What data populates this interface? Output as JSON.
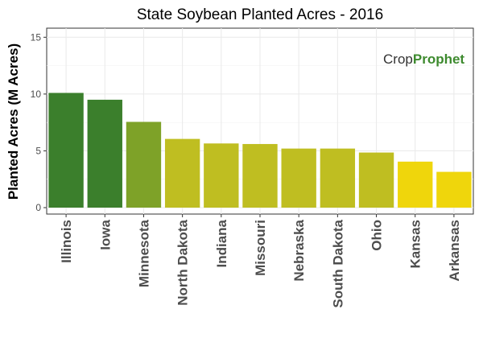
{
  "chart_data": {
    "type": "bar",
    "title": "State Soybean Planted Acres - 2016",
    "xlabel": "",
    "ylabel": "Planted Acres (M Acres)",
    "ylim": [
      0,
      15.8
    ],
    "yticks": [
      0,
      5,
      10,
      15
    ],
    "grid": true,
    "categories": [
      "Illinois",
      "Iowa",
      "Minnesota",
      "North Dakota",
      "Indiana",
      "Missouri",
      "Nebraska",
      "South Dakota",
      "Ohio",
      "Kansas",
      "Arkansas"
    ],
    "values": [
      10.1,
      9.5,
      7.55,
      6.05,
      5.65,
      5.6,
      5.2,
      5.2,
      4.85,
      4.05,
      3.15
    ],
    "colors": [
      "#3b7f2c",
      "#3b7f2c",
      "#7ea228",
      "#bfbe21",
      "#bfbe21",
      "#bfbe21",
      "#bfbe21",
      "#bfbe21",
      "#bfbe21",
      "#efd60c",
      "#efd60c"
    ]
  },
  "logo": {
    "part1": "Crop",
    "part2": "Prophet",
    "colors": {
      "crop": "#333333",
      "prophet": "#3d8a2e"
    }
  }
}
